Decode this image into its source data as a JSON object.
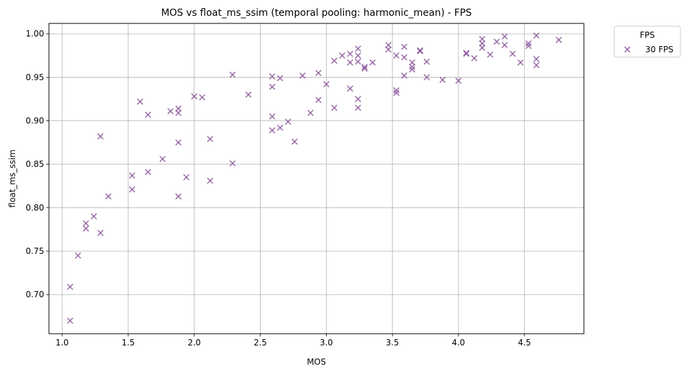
{
  "chart_data": {
    "type": "scatter",
    "title": "MOS vs float_ms_ssim (temporal pooling: harmonic_mean) - FPS",
    "xlabel": "MOS",
    "ylabel": "float_ms_ssim",
    "xlim": [
      0.9,
      4.95
    ],
    "ylim": [
      0.655,
      1.012
    ],
    "xticks": [
      1.0,
      1.5,
      2.0,
      2.5,
      3.0,
      3.5,
      4.0,
      4.5
    ],
    "xtick_labels": [
      "1.0",
      "1.5",
      "2.0",
      "2.5",
      "3.0",
      "3.5",
      "4.0",
      "4.5"
    ],
    "yticks": [
      0.7,
      0.75,
      0.8,
      0.85,
      0.9,
      0.95,
      1.0
    ],
    "ytick_labels": [
      "0.70",
      "0.75",
      "0.80",
      "0.85",
      "0.90",
      "0.95",
      "1.00"
    ],
    "grid": true,
    "legend": {
      "title": "FPS",
      "placement": "outside top-right"
    },
    "series": [
      {
        "name": "30 FPS",
        "marker": "x",
        "color": "#8e5b9e",
        "points": [
          [
            1.06,
            0.709
          ],
          [
            1.06,
            0.67
          ],
          [
            1.12,
            0.745
          ],
          [
            1.18,
            0.782
          ],
          [
            1.18,
            0.776
          ],
          [
            1.24,
            0.79
          ],
          [
            1.29,
            0.771
          ],
          [
            1.29,
            0.882
          ],
          [
            1.35,
            0.813
          ],
          [
            1.53,
            0.837
          ],
          [
            1.53,
            0.821
          ],
          [
            1.59,
            0.922
          ],
          [
            1.65,
            0.907
          ],
          [
            1.65,
            0.841
          ],
          [
            1.76,
            0.856
          ],
          [
            1.82,
            0.911
          ],
          [
            1.88,
            0.914
          ],
          [
            1.88,
            0.909
          ],
          [
            1.88,
            0.875
          ],
          [
            1.88,
            0.813
          ],
          [
            1.94,
            0.835
          ],
          [
            2.0,
            0.928
          ],
          [
            2.06,
            0.927
          ],
          [
            2.12,
            0.879
          ],
          [
            2.12,
            0.831
          ],
          [
            2.29,
            0.953
          ],
          [
            2.29,
            0.851
          ],
          [
            2.41,
            0.93
          ],
          [
            2.59,
            0.951
          ],
          [
            2.59,
            0.939
          ],
          [
            2.59,
            0.905
          ],
          [
            2.59,
            0.889
          ],
          [
            2.65,
            0.949
          ],
          [
            2.65,
            0.892
          ],
          [
            2.71,
            0.899
          ],
          [
            2.76,
            0.876
          ],
          [
            2.82,
            0.952
          ],
          [
            2.88,
            0.909
          ],
          [
            2.94,
            0.955
          ],
          [
            2.94,
            0.924
          ],
          [
            3.0,
            0.942
          ],
          [
            3.06,
            0.969
          ],
          [
            3.06,
            0.915
          ],
          [
            3.12,
            0.975
          ],
          [
            3.18,
            0.977
          ],
          [
            3.18,
            0.967
          ],
          [
            3.18,
            0.937
          ],
          [
            3.24,
            0.983
          ],
          [
            3.24,
            0.975
          ],
          [
            3.24,
            0.968
          ],
          [
            3.24,
            0.925
          ],
          [
            3.24,
            0.915
          ],
          [
            3.29,
            0.962
          ],
          [
            3.29,
            0.96
          ],
          [
            3.35,
            0.967
          ],
          [
            3.47,
            0.987
          ],
          [
            3.47,
            0.982
          ],
          [
            3.53,
            0.975
          ],
          [
            3.53,
            0.935
          ],
          [
            3.53,
            0.932
          ],
          [
            3.59,
            0.985
          ],
          [
            3.59,
            0.973
          ],
          [
            3.59,
            0.952
          ],
          [
            3.65,
            0.967
          ],
          [
            3.65,
            0.962
          ],
          [
            3.65,
            0.959
          ],
          [
            3.71,
            0.981
          ],
          [
            3.71,
            0.98
          ],
          [
            3.76,
            0.968
          ],
          [
            3.76,
            0.95
          ],
          [
            3.88,
            0.947
          ],
          [
            4.0,
            0.946
          ],
          [
            4.06,
            0.978
          ],
          [
            4.06,
            0.977
          ],
          [
            4.12,
            0.972
          ],
          [
            4.18,
            0.994
          ],
          [
            4.18,
            0.989
          ],
          [
            4.18,
            0.984
          ],
          [
            4.24,
            0.976
          ],
          [
            4.29,
            0.991
          ],
          [
            4.35,
            0.997
          ],
          [
            4.35,
            0.987
          ],
          [
            4.41,
            0.977
          ],
          [
            4.47,
            0.967
          ],
          [
            4.53,
            0.989
          ],
          [
            4.53,
            0.986
          ],
          [
            4.59,
            0.998
          ],
          [
            4.59,
            0.971
          ],
          [
            4.59,
            0.964
          ],
          [
            4.76,
            0.993
          ]
        ]
      }
    ]
  }
}
